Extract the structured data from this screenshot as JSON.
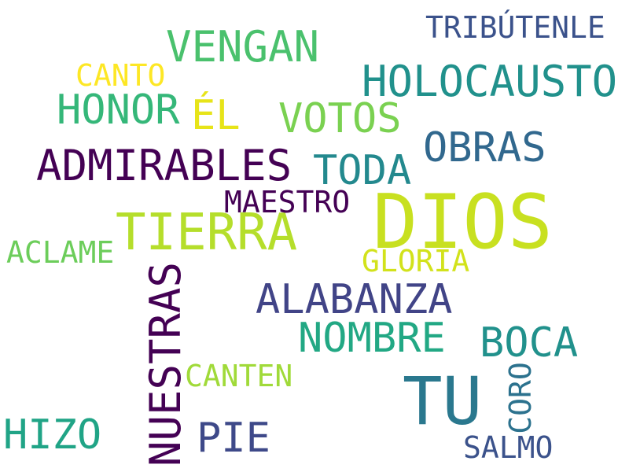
{
  "words": [
    {
      "id": "dios",
      "text": "DIOS",
      "color": "#c8e020"
    },
    {
      "id": "tu",
      "text": "TU",
      "color": "#2a788e"
    },
    {
      "id": "tierra",
      "text": "TIERRA",
      "color": "#b5de2b"
    },
    {
      "id": "admirables",
      "text": "ADMIRABLES",
      "color": "#440154"
    },
    {
      "id": "holocausto",
      "text": "HOLOCAUSTO",
      "color": "#21918c"
    },
    {
      "id": "vengan",
      "text": "VENGAN",
      "color": "#4ac16d"
    },
    {
      "id": "nuestras",
      "text": "NUESTRAS",
      "color": "#440154"
    },
    {
      "id": "alabanza",
      "text": "ALABANZA",
      "color": "#414487"
    },
    {
      "id": "votos",
      "text": "VOTOS",
      "color": "#7ad151"
    },
    {
      "id": "honor",
      "text": "HONOR",
      "color": "#35b779"
    },
    {
      "id": "obras",
      "text": "OBRAS",
      "color": "#31688e"
    },
    {
      "id": "toda",
      "text": "TODA",
      "color": "#23898e"
    },
    {
      "id": "nombre",
      "text": "NOMBRE",
      "color": "#22a884"
    },
    {
      "id": "boca",
      "text": "BOCA",
      "color": "#21918c"
    },
    {
      "id": "hizo",
      "text": "HIZO",
      "color": "#20a486"
    },
    {
      "id": "pie",
      "text": "PIE",
      "color": "#3e4989"
    },
    {
      "id": "el",
      "text": "ÉL",
      "color": "#e7e419"
    },
    {
      "id": "tributenle",
      "text": "TRIBÚTENLE",
      "color": "#3b528b"
    },
    {
      "id": "maestro",
      "text": "MAESTRO",
      "color": "#440154"
    },
    {
      "id": "canten",
      "text": "CANTEN",
      "color": "#a0da39"
    },
    {
      "id": "aclame",
      "text": "ACLAME",
      "color": "#6ccd5a"
    },
    {
      "id": "gloria",
      "text": "GLORIA",
      "color": "#d2e21b"
    },
    {
      "id": "canto",
      "text": "CANTO",
      "color": "#fde725"
    },
    {
      "id": "coro",
      "text": "CORO",
      "color": "#2c728e"
    },
    {
      "id": "salmo",
      "text": "SALMO",
      "color": "#3b528b"
    }
  ]
}
